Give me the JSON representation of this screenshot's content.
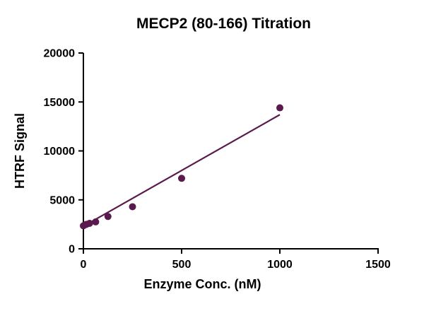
{
  "chart_data": {
    "type": "scatter",
    "title": "MECP2 (80-166) Titration",
    "xlabel": "Enzyme Conc. (nM)",
    "ylabel": "HTRF Signal",
    "xlim": [
      0,
      1500
    ],
    "ylim": [
      0,
      20000
    ],
    "xticks": [
      0,
      500,
      1000,
      1500
    ],
    "yticks": [
      0,
      5000,
      10000,
      15000,
      20000
    ],
    "grid": false,
    "legend": "none",
    "marker_color": "#5A1A4D",
    "line_color": "#5A1A4D",
    "axis_color": "#000000",
    "text_color": "#000000",
    "points": [
      {
        "x": 0,
        "y": 2350
      },
      {
        "x": 7.8,
        "y": 2450
      },
      {
        "x": 15.6,
        "y": 2500
      },
      {
        "x": 31.3,
        "y": 2600
      },
      {
        "x": 62.5,
        "y": 2750
      },
      {
        "x": 125,
        "y": 3300
      },
      {
        "x": 250,
        "y": 4300
      },
      {
        "x": 500,
        "y": 7200
      },
      {
        "x": 1000,
        "y": 14400
      }
    ],
    "fit_line": {
      "x_start": 0,
      "y_start": 2300,
      "x_end": 1000,
      "y_end": 13700
    }
  }
}
